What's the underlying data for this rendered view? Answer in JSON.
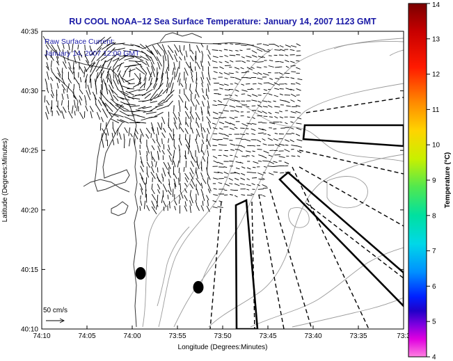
{
  "title": "RU COOL  NOAA–12  Sea Surface Temperature:  January 14, 2007 1123 GMT",
  "legend": {
    "line1": "Raw Surface Current:",
    "line2": "January 14, 2007 12:00 GMT",
    "scale_label": "50 cm/s"
  },
  "axes": {
    "xlabel": "Longitude (Degrees:Minutes)",
    "ylabel": "Latitude (Degrees:Minutes)",
    "x_ticks": [
      "74:10",
      "74:05",
      "74:00",
      "73:55",
      "73:50",
      "73:45",
      "73:40",
      "73:35",
      "73:3"
    ],
    "y_ticks": [
      "40:35",
      "40:30",
      "40:25",
      "40:20",
      "40:15",
      "40:10"
    ]
  },
  "colorbar": {
    "label": "Temperature (°C)",
    "ticks": [
      "14",
      "13",
      "12",
      "11",
      "10",
      "9",
      "8",
      "7",
      "6",
      "5",
      "4"
    ],
    "min": 4,
    "max": 14
  },
  "colors": {
    "title": "#1a1aa6",
    "legend_text": "#1a1aa6",
    "frame": "#000000",
    "bathymetry": "#9a9a9a",
    "coast": "#333333"
  }
}
